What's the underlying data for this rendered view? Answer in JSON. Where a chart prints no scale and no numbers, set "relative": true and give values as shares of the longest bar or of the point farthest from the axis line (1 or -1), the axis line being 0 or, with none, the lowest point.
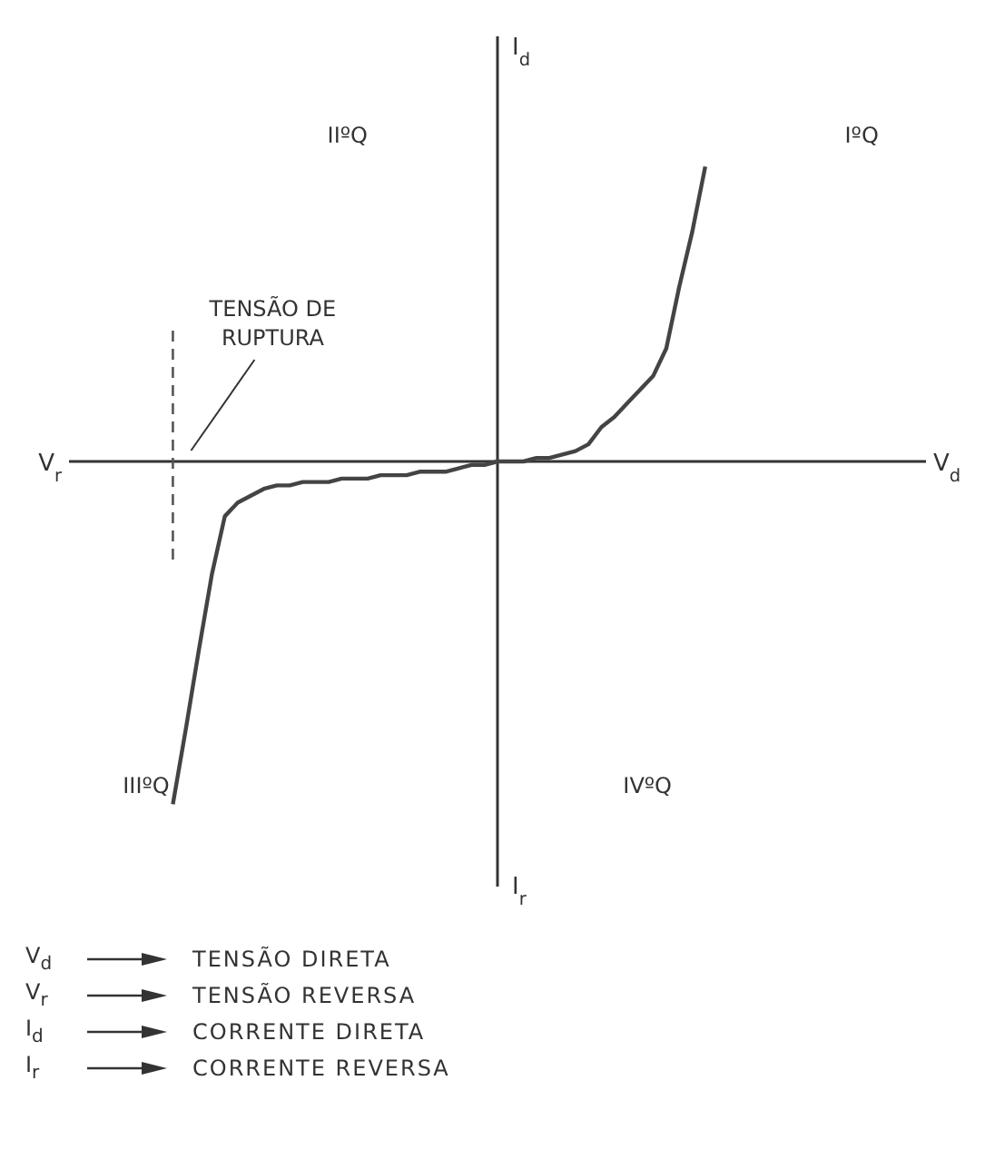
{
  "chart_data": {
    "type": "line",
    "relative": true,
    "categories": [
      null,
      null,
      null,
      null,
      null,
      null,
      null,
      null,
      null,
      null,
      null,
      null,
      null,
      null,
      null,
      null,
      null,
      null,
      null,
      null,
      null,
      null,
      null,
      null,
      null,
      null,
      null,
      null,
      null,
      null,
      null,
      null,
      null,
      null,
      null,
      null,
      null,
      null,
      null,
      null,
      null,
      null
    ],
    "series": [
      {
        "color": "#444444",
        "values": [
          -1.0,
          -0.78,
          -0.55,
          -0.33,
          -0.16,
          -0.12,
          -0.1,
          -0.08,
          -0.07,
          -0.07,
          -0.06,
          -0.06,
          -0.06,
          -0.05,
          -0.05,
          -0.05,
          -0.04,
          -0.04,
          -0.04,
          -0.03,
          -0.03,
          -0.03,
          -0.02,
          -0.01,
          -0.01,
          0,
          0,
          0,
          0.01,
          0.01,
          0.02,
          0.03,
          0.05,
          0.1,
          0.13,
          0.17,
          0.21,
          0.25,
          0.33,
          0.51,
          0.67,
          0.86
        ]
      }
    ],
    "marker": "none",
    "line_style": "solid",
    "annotations": [
      "TENSÃO DE RUPTURA",
      "V$_{d}$",
      "V$_{r}$",
      "I$_{d}$",
      "I$_{r}$",
      "IºQ",
      "IIºQ",
      "IIIºQ",
      "IVºQ",
      "V$_{d}$",
      "TENSÃO DIRETA",
      "V$_{r}$",
      "TENSÃO REVERSA",
      "I$_{d}$",
      "CORRENTE DIRETA",
      "I$_{r}$",
      "CORRENTE REVERSA"
    ]
  }
}
